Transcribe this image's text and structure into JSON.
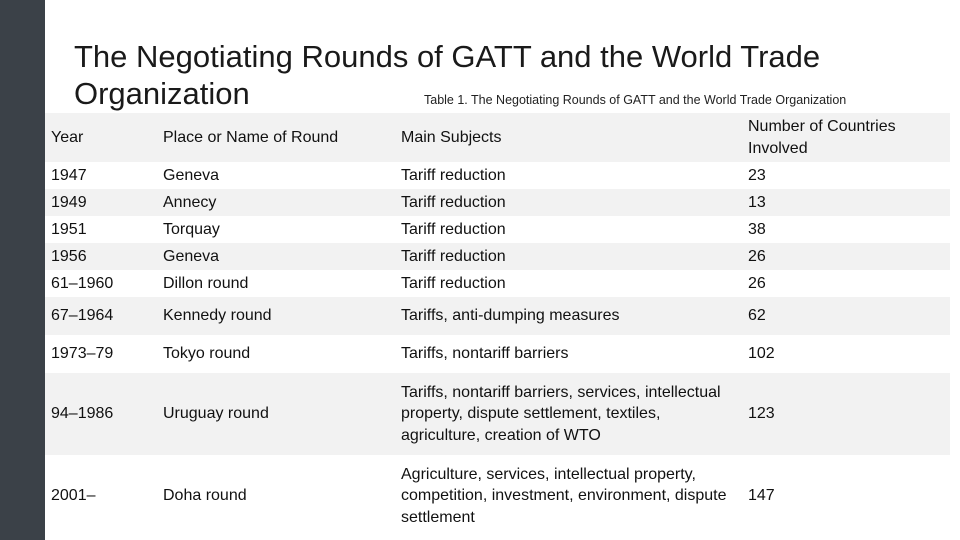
{
  "slide": {
    "title": "The Negotiating Rounds of GATT and the World Trade Organization",
    "caption": "Table 1. The Negotiating Rounds of GATT and the World Trade Organization"
  },
  "table": {
    "headers": [
      "Year",
      "Place or Name of Round",
      "Main Subjects",
      "Number of Countries Involved"
    ],
    "rows": [
      [
        "1947",
        "Geneva",
        "Tariff reduction",
        "23"
      ],
      [
        "1949",
        "Annecy",
        "Tariff reduction",
        "13"
      ],
      [
        "1951",
        "Torquay",
        "Tariff reduction",
        "38"
      ],
      [
        "1956",
        "Geneva",
        "Tariff reduction",
        "26"
      ],
      [
        "61–1960",
        "Dillon round",
        "Tariff reduction",
        "26"
      ],
      [
        "67–1964",
        "Kennedy round",
        "Tariffs, anti-dumping measures",
        "62"
      ],
      [
        "1973–79",
        "Tokyo round",
        "Tariffs, nontariff barriers",
        "102"
      ],
      [
        "94–1986",
        "Uruguay round",
        "Tariffs, nontariff barriers, services, intellectual property, dispute settlement, textiles, agriculture, creation of WTO",
        "123"
      ],
      [
        "2001–",
        "Doha round",
        "Agriculture, services, intellectual property, competition, investment, environment, dispute settlement",
        "147"
      ]
    ]
  }
}
